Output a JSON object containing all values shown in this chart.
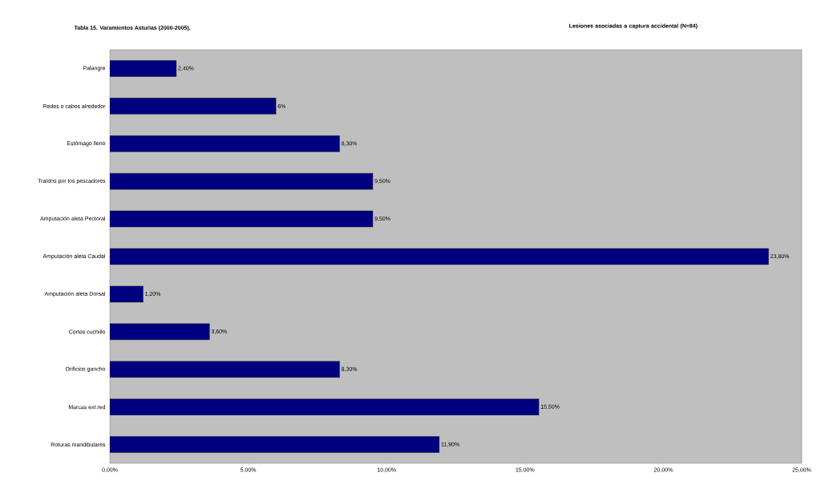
{
  "chart_data": {
    "type": "bar",
    "orientation": "horizontal",
    "title": "Tabla 15. Varamientos Asturias (2000-2005).",
    "subtitle": "Lesiones asociadas a captura accidental (N=84)",
    "categories": [
      "Palangre",
      "Redes o cabos alrededor",
      "Estómago lleno",
      "Traídos por los pescadores",
      "Amputación aleta Pectoral",
      "Amputación aleta Caudal",
      "Amputación aleta Dorsal",
      "Cortes cuchillo",
      "Orificios gancho",
      "Marcas ext.red",
      "Roturas mandibulares"
    ],
    "values": [
      2.4,
      6,
      8.3,
      9.5,
      9.5,
      23.8,
      1.2,
      3.6,
      8.3,
      15.5,
      11.9
    ],
    "value_labels": [
      "2,40%",
      "6%",
      "8,30%",
      "9,50%",
      "9,50%",
      "23,80%",
      "1,20%",
      "3,60%",
      "8,30%",
      "15,50%",
      "11,90%"
    ],
    "color": "#000080",
    "xlim": [
      0,
      25
    ],
    "xticks": [
      {
        "value": 0,
        "label": "0,00%"
      },
      {
        "value": 5,
        "label": "5,00%"
      },
      {
        "value": 10,
        "label": "10,00%"
      },
      {
        "value": 15,
        "label": "15,00%"
      },
      {
        "value": 20,
        "label": "20,00%"
      },
      {
        "value": 25,
        "label": "25,00%"
      }
    ]
  }
}
